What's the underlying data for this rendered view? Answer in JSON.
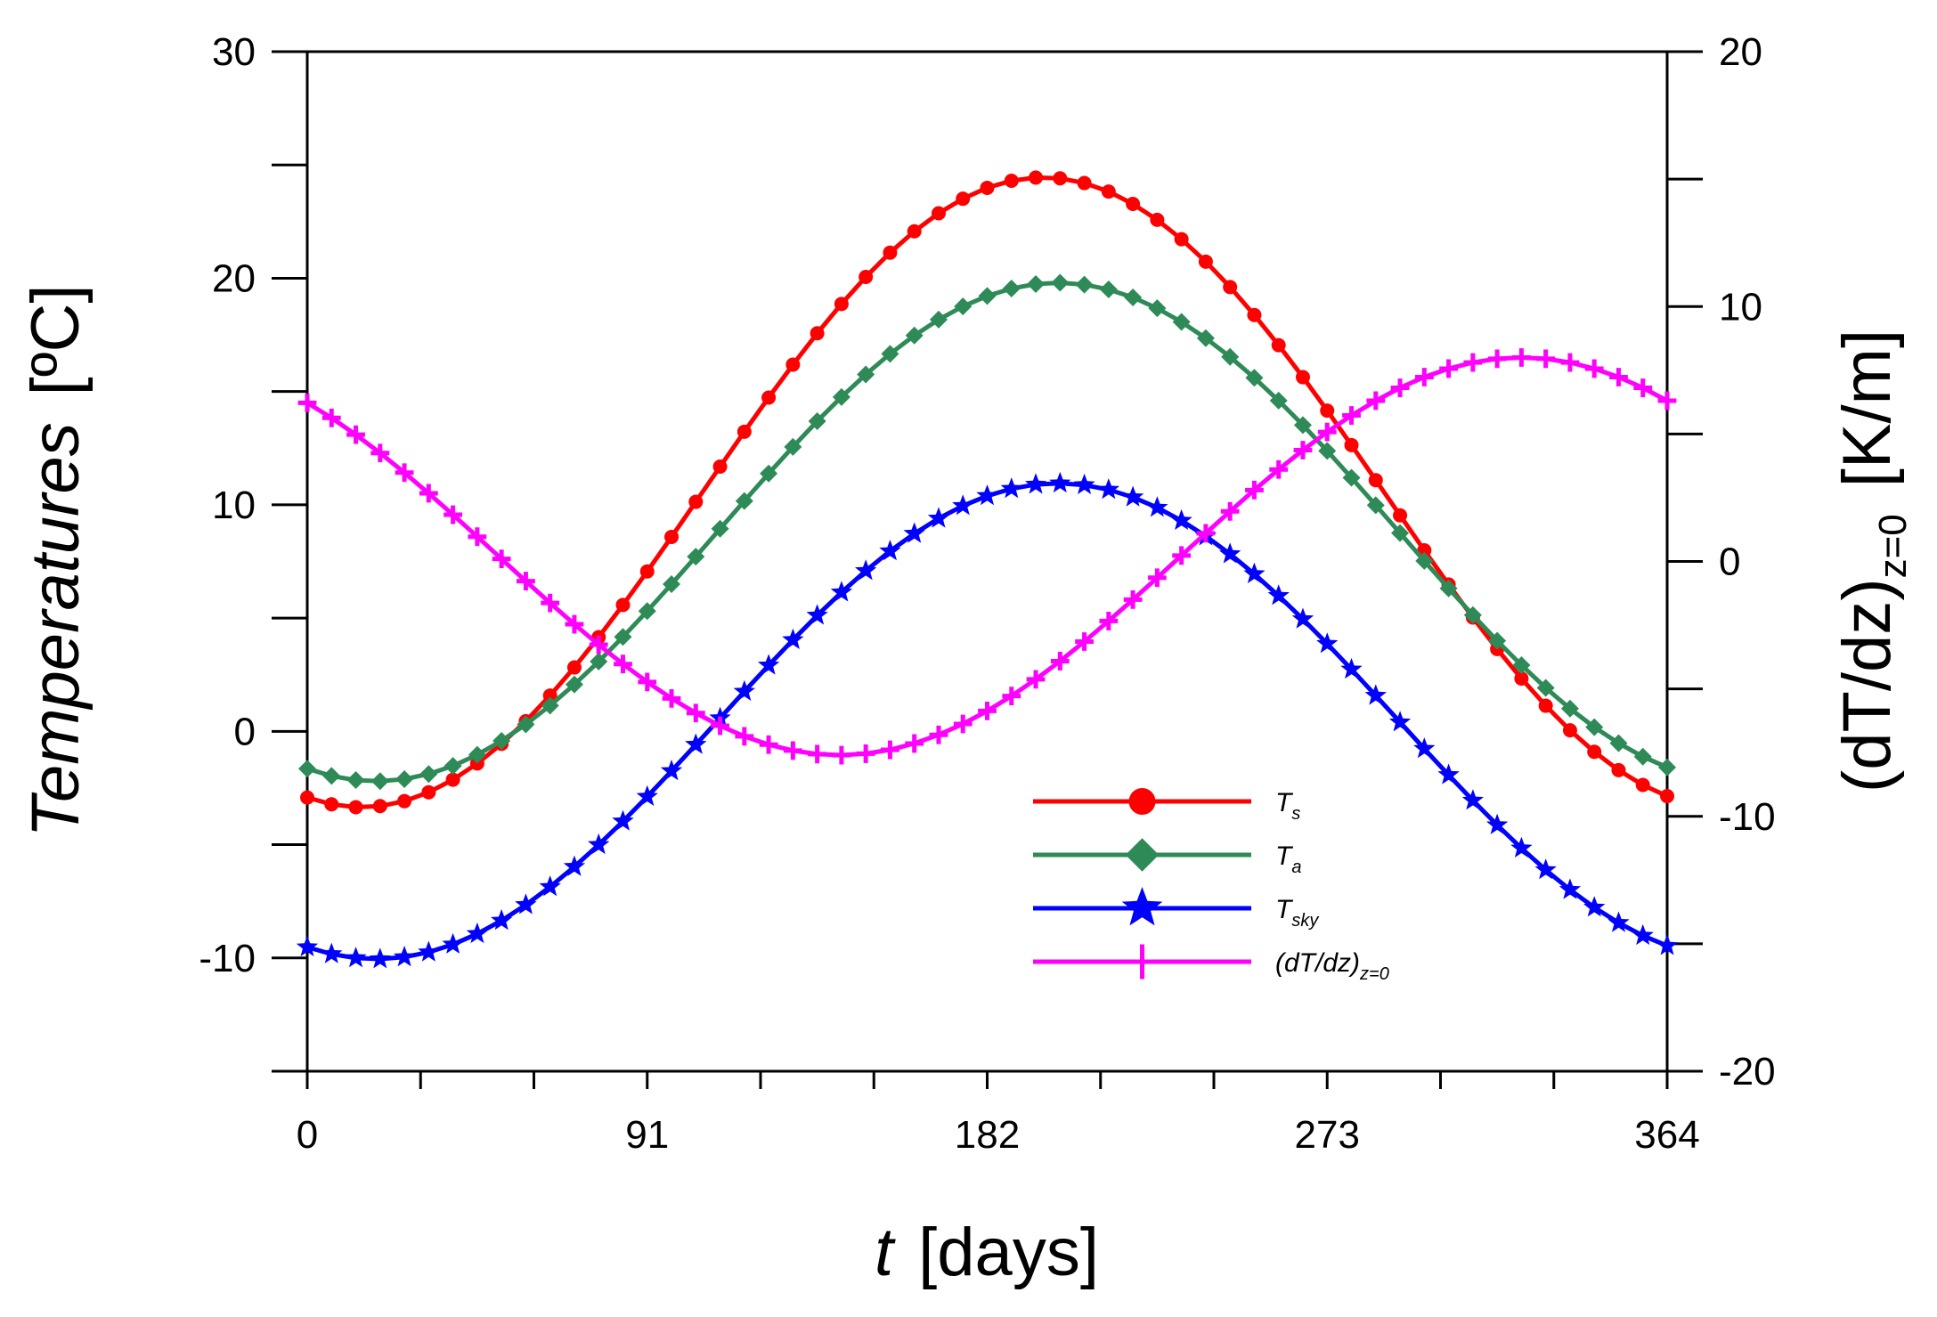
{
  "chart_data": {
    "type": "line",
    "x": {
      "label_var": "t",
      "label_unit": "[days]",
      "range": [
        0,
        364
      ],
      "tick_labels": [
        "0",
        "91",
        "182",
        "273",
        "364"
      ],
      "tick_values": [
        0,
        91,
        182,
        273,
        364
      ]
    },
    "y_left": {
      "label": "Temperatures",
      "unit": "[ºC]",
      "range": [
        -15,
        30
      ],
      "tick_labels": [
        "30",
        "20",
        "10",
        "0",
        "-10"
      ],
      "tick_values": [
        30,
        20,
        10,
        0,
        -10
      ]
    },
    "y_right": {
      "label_main": "(dT/dz)",
      "label_sub": "z=0",
      "unit": "[K/m]",
      "range": [
        -20,
        20
      ],
      "tick_labels": [
        "20",
        "10",
        "0",
        "-10",
        "-20"
      ],
      "tick_values": [
        20,
        10,
        0,
        -10,
        -20
      ]
    },
    "series": [
      {
        "name": "T_s",
        "legend_main": "T",
        "legend_sub": "s",
        "axis": "left",
        "color": "#ff0000",
        "marker": "circle",
        "model": {
          "mean": 10.55,
          "amplitude": 13.9,
          "phase_day": 197
        }
      },
      {
        "name": "T_a",
        "legend_main": "T",
        "legend_sub": "a",
        "axis": "left",
        "color": "#2e8b57",
        "marker": "diamond",
        "model": {
          "mean": 8.8,
          "amplitude": 11.0,
          "phase_day": 201
        }
      },
      {
        "name": "T_sky",
        "legend_main": "T",
        "legend_sub": "sky",
        "axis": "left",
        "color": "#0000ff",
        "marker": "star",
        "model": {
          "mean": 0.45,
          "amplitude": 10.5,
          "phase_day": 201
        }
      },
      {
        "name": "(dT/dz)_z=0",
        "legend_main": "(dT/dz)",
        "legend_sub": "z=0",
        "axis": "right",
        "color": "#ff00ff",
        "marker": "plus",
        "model": {
          "mean": 0.2,
          "amplitude": 7.8,
          "phase_day": 325
        }
      }
    ],
    "samples": {
      "start": 0,
      "end": 364,
      "step": 6.5
    },
    "legend_position": "bottom-right"
  }
}
